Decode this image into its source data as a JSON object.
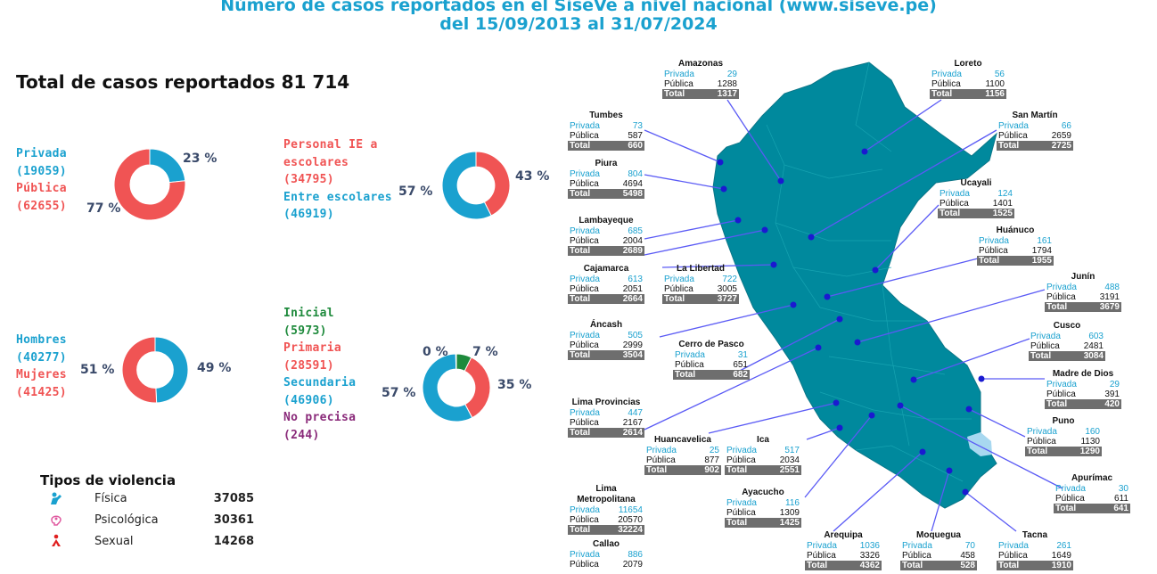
{
  "header": {
    "line1": "Número de casos reportados en el SíseVe a nivel nacional (www.siseve.pe)",
    "line2": "del 15/09/2013 al 31/07/2024"
  },
  "total_title": "Total de casos reportados 81 714",
  "colors": {
    "blue": "#1aa1cf",
    "red": "#f05454",
    "green": "#1e8a3c",
    "purple": "#8a2a7a",
    "map": "#00899d",
    "line": "#5a5af5",
    "dot": "#1a1ad0",
    "lake": "#a8d8f0"
  },
  "chart_data": [
    {
      "type": "pie",
      "title": "",
      "labels": [
        "Privada",
        "Pública"
      ],
      "counts": [
        "(19059)",
        "(62655)"
      ],
      "values": [
        19059,
        62655
      ],
      "percent_labels": [
        "23 %",
        "77 %"
      ],
      "colors": [
        "#1aa1cf",
        "#f05454"
      ]
    },
    {
      "type": "pie",
      "title": "",
      "labels": [
        "Personal IE a escolares",
        "Entre escolares"
      ],
      "counts": [
        "(34795)",
        "(46919)"
      ],
      "values": [
        34795,
        46919
      ],
      "percent_labels": [
        "43 %",
        "57 %"
      ],
      "colors": [
        "#f05454",
        "#1aa1cf"
      ]
    },
    {
      "type": "pie",
      "title": "",
      "labels": [
        "Hombres",
        "Mujeres"
      ],
      "counts": [
        "(40277)",
        "(41425)"
      ],
      "values": [
        40277,
        41425
      ],
      "percent_labels": [
        "49 %",
        "51 %"
      ],
      "colors": [
        "#1aa1cf",
        "#f05454"
      ]
    },
    {
      "type": "pie",
      "title": "",
      "labels": [
        "Inicial",
        "Primaria",
        "Secundaria",
        "No precisa"
      ],
      "counts": [
        "(5973)",
        "(28591)",
        "(46906)",
        "(244)"
      ],
      "values": [
        5973,
        28591,
        46906,
        244
      ],
      "percent_labels": [
        "7 %",
        "35 %",
        "57 %",
        "0 %"
      ],
      "colors": [
        "#1e8a3c",
        "#f05454",
        "#1aa1cf",
        "#8a2a7a"
      ]
    }
  ],
  "labels": {
    "personal_l1": "Personal IE a",
    "personal_l2": "escolares"
  },
  "violence": {
    "title": "Tipos de violencia",
    "items": [
      {
        "name": "Física",
        "value": "37085",
        "icon": "physical-violence-icon",
        "color": "#1aa1cf"
      },
      {
        "name": "Psicológica",
        "value": "30361",
        "icon": "psychological-violence-icon",
        "color": "#e05aa0"
      },
      {
        "name": "Sexual",
        "value": "14268",
        "icon": "sexual-violence-icon",
        "color": "#e02020"
      }
    ]
  },
  "row_labels": {
    "privada": "Privada",
    "publica": "Pública",
    "total": "Total"
  },
  "regions": [
    {
      "name": "Amazonas",
      "privada": "29",
      "publica": "1288",
      "total": "1317"
    },
    {
      "name": "Loreto",
      "privada": "56",
      "publica": "1100",
      "total": "1156"
    },
    {
      "name": "Tumbes",
      "privada": "73",
      "publica": "587",
      "total": "660"
    },
    {
      "name": "San Martín",
      "privada": "66",
      "publica": "2659",
      "total": "2725"
    },
    {
      "name": "Piura",
      "privada": "804",
      "publica": "4694",
      "total": "5498"
    },
    {
      "name": "Ucayali",
      "privada": "124",
      "publica": "1401",
      "total": "1525"
    },
    {
      "name": "Lambayeque",
      "privada": "685",
      "publica": "2004",
      "total": "2689"
    },
    {
      "name": "Huánuco",
      "privada": "161",
      "publica": "1794",
      "total": "1955"
    },
    {
      "name": "Cajamarca",
      "privada": "613",
      "publica": "2051",
      "total": "2664"
    },
    {
      "name": "La Libertad",
      "privada": "722",
      "publica": "3005",
      "total": "3727"
    },
    {
      "name": "Junín",
      "privada": "488",
      "publica": "3191",
      "total": "3679"
    },
    {
      "name": "Áncash",
      "privada": "505",
      "publica": "2999",
      "total": "3504"
    },
    {
      "name": "Cusco",
      "privada": "603",
      "publica": "2481",
      "total": "3084"
    },
    {
      "name": "Cerro de Pasco",
      "privada": "31",
      "publica": "651",
      "total": "682"
    },
    {
      "name": "Madre de Dios",
      "privada": "29",
      "publica": "391",
      "total": "420"
    },
    {
      "name": "Lima Provincias",
      "privada": "447",
      "publica": "2167",
      "total": "2614"
    },
    {
      "name": "Puno",
      "privada": "160",
      "publica": "1130",
      "total": "1290"
    },
    {
      "name": "Huancavelica",
      "privada": "25",
      "publica": "877",
      "total": "902"
    },
    {
      "name": "Ica",
      "privada": "517",
      "publica": "2034",
      "total": "2551"
    },
    {
      "name": "Apurímac",
      "privada": "30",
      "publica": "611",
      "total": "641"
    },
    {
      "name": "Lima Metropolitana",
      "privada": "11654",
      "publica": "20570",
      "total": "32224"
    },
    {
      "name": "Ayacucho",
      "privada": "116",
      "publica": "1309",
      "total": "1425"
    },
    {
      "name": "Arequipa",
      "privada": "1036",
      "publica": "3326",
      "total": "4362"
    },
    {
      "name": "Moquegua",
      "privada": "70",
      "publica": "458",
      "total": "528"
    },
    {
      "name": "Tacna",
      "privada": "261",
      "publica": "1649",
      "total": "1910"
    },
    {
      "name": "Callao",
      "privada": "886",
      "publica": "2079",
      "total": ""
    }
  ]
}
